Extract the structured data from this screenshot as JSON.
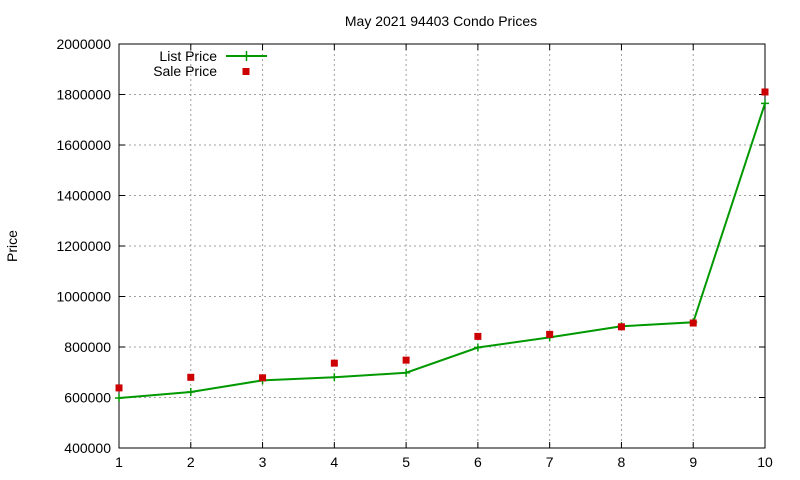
{
  "chart_data": {
    "type": "line",
    "title": "May 2021 94403 Condo Prices",
    "xlabel": "",
    "ylabel": "Price",
    "x": [
      1,
      2,
      3,
      4,
      5,
      6,
      7,
      8,
      9,
      10
    ],
    "xlim": [
      1,
      10
    ],
    "ylim": [
      400000,
      2000000
    ],
    "xticks": [
      "1",
      "2",
      "3",
      "4",
      "5",
      "6",
      "7",
      "8",
      "9",
      "10"
    ],
    "yticks": [
      "400000",
      "600000",
      "800000",
      "1000000",
      "1200000",
      "1400000",
      "1600000",
      "1800000",
      "2000000"
    ],
    "grid": true,
    "legend_position": "top-left",
    "series": [
      {
        "name": "List Price",
        "style": "line-with-plus-markers",
        "color": "#009900",
        "values": [
          598000,
          622000,
          668000,
          680000,
          698000,
          798000,
          838000,
          882000,
          898000,
          1765000
        ]
      },
      {
        "name": "Sale Price",
        "style": "square-points",
        "color": "#cc0000",
        "values": [
          638000,
          680000,
          678000,
          736000,
          748000,
          842000,
          850000,
          880000,
          895000,
          1810000
        ]
      }
    ]
  }
}
